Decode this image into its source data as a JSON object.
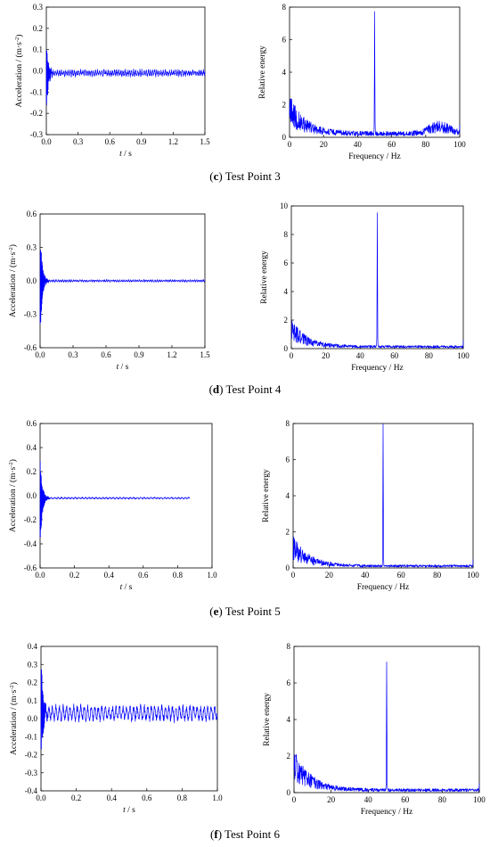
{
  "colors": {
    "series": "#0000ff",
    "axes": "#000000"
  },
  "panels": [
    {
      "caption_letter": "c",
      "caption_text": " Test Point 3",
      "time": {
        "type": "line",
        "xlabel_italic": "t",
        "xlabel_unit": " / s",
        "ylabel_main": "Acceleration / (m·s",
        "ylabel_sup": "-2",
        "ylabel_close": ")",
        "xlim": [
          0,
          1.5
        ],
        "ylim": [
          -0.3,
          0.3
        ],
        "xticks": [
          "0.0",
          "0.3",
          "0.6",
          "0.9",
          "1.2",
          "1.5"
        ],
        "yticks": [
          "-0.3",
          "-0.2",
          "-0.1",
          "0.0",
          "0.1",
          "0.2",
          "0.3"
        ],
        "signal_end": 1.5,
        "peak": 0.16,
        "trough": -0.21,
        "baseline": -0.01,
        "noise": 0.008,
        "ripple": 0.012
      },
      "spectrum": {
        "type": "line",
        "xlabel": "Frequency / Hz",
        "ylabel": "Relative energy",
        "xlim": [
          0,
          100
        ],
        "ylim": [
          0,
          8
        ],
        "xticks": [
          "0",
          "20",
          "40",
          "60",
          "80",
          "100"
        ],
        "yticks": [
          "0",
          "2",
          "4",
          "6",
          "8"
        ],
        "peak_freq": 50,
        "peak_value": 7.4,
        "low_freq_level": 1.6,
        "floor": 0.25,
        "bump_80_100": 0.45
      }
    },
    {
      "caption_letter": "d",
      "caption_text": " Test Point 4",
      "time": {
        "type": "line",
        "xlabel_italic": "t",
        "xlabel_unit": " / s",
        "ylabel_main": "Acceleration / (m·s",
        "ylabel_sup": "-2",
        "ylabel_close": ")",
        "xlim": [
          0,
          1.5
        ],
        "ylim": [
          -0.6,
          0.6
        ],
        "xticks": [
          "0.0",
          "0.3",
          "0.6",
          "0.9",
          "1.2",
          "1.5"
        ],
        "yticks": [
          "-0.6",
          "-0.3",
          "0.0",
          "0.3",
          "0.6"
        ],
        "signal_end": 1.5,
        "peak": 0.5,
        "trough": -0.58,
        "baseline": 0.0,
        "noise": 0.006,
        "ripple": 0.008
      },
      "spectrum": {
        "type": "line",
        "xlabel": "Frequency / Hz",
        "ylabel": "Relative energy",
        "xlim": [
          0,
          100
        ],
        "ylim": [
          0,
          10
        ],
        "xticks": [
          "0",
          "20",
          "40",
          "60",
          "80",
          "100"
        ],
        "yticks": [
          "0",
          "2",
          "4",
          "6",
          "8",
          "10"
        ],
        "peak_freq": 50,
        "peak_value": 9.4,
        "low_freq_level": 1.3,
        "floor": 0.15,
        "bump_80_100": 0.0
      }
    },
    {
      "caption_letter": "e",
      "caption_text": " Test Point 5",
      "time": {
        "type": "line",
        "xlabel_italic": "t",
        "xlabel_unit": " / s",
        "ylabel_main": "Acceleration / (m·s",
        "ylabel_sup": "-2",
        "ylabel_close": ")",
        "xlim": [
          0,
          1.0
        ],
        "ylim": [
          -0.6,
          0.6
        ],
        "xticks": [
          "0.0",
          "0.2",
          "0.4",
          "0.6",
          "0.8",
          "1.0"
        ],
        "yticks": [
          "-0.6",
          "-0.4",
          "-0.2",
          "0.0",
          "0.2",
          "0.4",
          "0.6"
        ],
        "signal_end": 0.87,
        "peak": 0.39,
        "trough": -0.48,
        "baseline": -0.02,
        "noise": 0.004,
        "ripple": 0.006
      },
      "spectrum": {
        "type": "line",
        "xlabel": "Frequency / Hz",
        "ylabel": "Relative energy",
        "xlim": [
          0,
          100
        ],
        "ylim": [
          0,
          8
        ],
        "xticks": [
          "0",
          "20",
          "40",
          "60",
          "80",
          "100"
        ],
        "yticks": [
          "0",
          "2",
          "4",
          "6",
          "8"
        ],
        "peak_freq": 50,
        "peak_value": 7.8,
        "low_freq_level": 1.1,
        "floor": 0.12,
        "bump_80_100": 0.0
      }
    },
    {
      "caption_letter": "f",
      "caption_text": " Test Point 6",
      "time": {
        "type": "line",
        "xlabel_italic": "t",
        "xlabel_unit": " / s",
        "ylabel_main": "Acceleration / (m·s",
        "ylabel_sup": "-2",
        "ylabel_close": ")",
        "xlim": [
          0,
          1.0
        ],
        "ylim": [
          -0.4,
          0.4
        ],
        "xticks": [
          "0.0",
          "0.2",
          "0.4",
          "0.6",
          "0.8",
          "1.0"
        ],
        "yticks": [
          "-0.4",
          "-0.3",
          "-0.2",
          "-0.1",
          "0.0",
          "0.1",
          "0.2",
          "0.3",
          "0.4"
        ],
        "signal_end": 1.0,
        "peak": 0.38,
        "trough": -0.3,
        "baseline": 0.03,
        "noise": 0.015,
        "ripple": 0.04
      },
      "spectrum": {
        "type": "line",
        "xlabel": "Frequency / Hz",
        "ylabel": "Relative energy",
        "xlim": [
          0,
          100
        ],
        "ylim": [
          0,
          8
        ],
        "xticks": [
          "0",
          "20",
          "40",
          "60",
          "80",
          "100"
        ],
        "yticks": [
          "0",
          "2",
          "4",
          "6",
          "8"
        ],
        "peak_freq": 50,
        "peak_value": 7.0,
        "low_freq_level": 1.5,
        "floor": 0.15,
        "bump_80_100": 0.0
      }
    }
  ]
}
